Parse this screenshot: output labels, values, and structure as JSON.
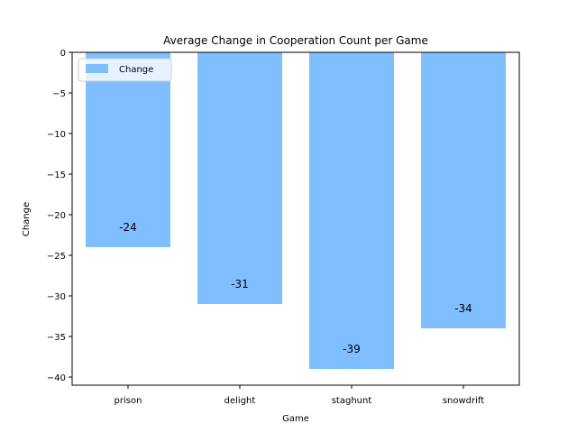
{
  "chart_data": {
    "type": "bar",
    "title": "Average Change in Cooperation Count per Game",
    "xlabel": "Game",
    "ylabel": "Change",
    "categories": [
      "prison",
      "delight",
      "staghunt",
      "snowdrift"
    ],
    "series": [
      {
        "name": "Change",
        "values": [
          -24,
          -31,
          -39,
          -34
        ],
        "color": "#7fbfff"
      }
    ],
    "data_labels": [
      "-24",
      "-31",
      "-39",
      "-34"
    ],
    "ylim": [
      -41,
      0
    ],
    "yticks": [
      0,
      -5,
      -10,
      -15,
      -20,
      -25,
      -30,
      -35,
      -40
    ],
    "ytick_labels": [
      "0",
      "−5",
      "−10",
      "−15",
      "−20",
      "−25",
      "−30",
      "−35",
      "−40"
    ],
    "grid": false,
    "legend_position": "top-left"
  }
}
